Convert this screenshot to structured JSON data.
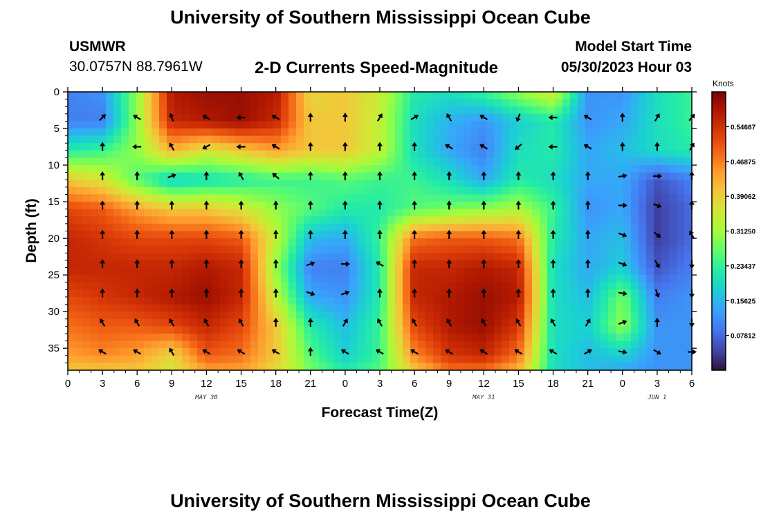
{
  "page": {
    "title": "University of Southern Mississippi Ocean Cube",
    "station": "USMWR",
    "coordinates": "30.0757N  88.7961W",
    "model_start_label": "Model Start Time",
    "model_start_value": "05/30/2023 Hour 03",
    "footer_title": "University of Southern Mississippi Ocean Cube"
  },
  "chart_data": {
    "type": "heatmap",
    "subtitle": "2-D Currents Speed-Magnitude",
    "xlabel": "Forecast Time(Z)",
    "ylabel": "Depth (ft)",
    "x_tick_labels": [
      "0",
      "3",
      "6",
      "9",
      "12",
      "15",
      "18",
      "21",
      "0",
      "3",
      "6",
      "9",
      "12",
      "15",
      "18",
      "21",
      "0",
      "3",
      "6"
    ],
    "x_range_hours": [
      0,
      54
    ],
    "date_labels": [
      {
        "text": "MAY 30",
        "hour": 12
      },
      {
        "text": "MAY 31",
        "hour": 36
      },
      {
        "text": "JUN 1",
        "hour": 51
      }
    ],
    "y_range_ft": [
      0,
      38
    ],
    "y_reversed": true,
    "y_tick_labels": [
      "0",
      "5",
      "10",
      "15",
      "20",
      "25",
      "30",
      "35"
    ],
    "y_tick_values": [
      0,
      5,
      10,
      15,
      20,
      25,
      30,
      35
    ],
    "colorbar": {
      "unit_label": "Knots",
      "min": 0,
      "max": 0.625,
      "tick_labels": [
        "0.54687",
        "0.46875",
        "0.39062",
        "0.31250",
        "0.23437",
        "0.15625",
        "0.07812"
      ],
      "tick_values": [
        0.54687,
        0.46875,
        0.39062,
        0.3125,
        0.23437,
        0.15625,
        0.07812
      ],
      "colormap": [
        "#30123b",
        "#4145ab",
        "#4675ed",
        "#39a2fc",
        "#1bcfd4",
        "#24eca6",
        "#61fc6c",
        "#a4fc3b",
        "#d1e834",
        "#f3c63a",
        "#fe9b2d",
        "#f36315",
        "#d93807",
        "#b11901",
        "#7a0403"
      ]
    },
    "speed_field_hours": [
      0,
      3,
      6,
      9,
      12,
      15,
      18,
      21,
      24,
      27,
      30,
      33,
      36,
      39,
      42,
      45,
      48,
      51,
      54
    ],
    "speed_field_depths_ft": [
      0,
      4,
      8,
      12,
      16,
      20,
      24,
      28,
      32,
      36,
      38
    ],
    "speed_field_knots": [
      [
        0.1,
        0.12,
        0.3,
        0.58,
        0.6,
        0.6,
        0.58,
        0.38,
        0.4,
        0.35,
        0.22,
        0.2,
        0.24,
        0.3,
        0.36,
        0.12,
        0.12,
        0.2,
        0.24
      ],
      [
        0.1,
        0.1,
        0.3,
        0.56,
        0.58,
        0.6,
        0.56,
        0.4,
        0.4,
        0.34,
        0.2,
        0.15,
        0.12,
        0.18,
        0.22,
        0.12,
        0.14,
        0.2,
        0.24
      ],
      [
        0.22,
        0.24,
        0.3,
        0.42,
        0.36,
        0.4,
        0.44,
        0.4,
        0.4,
        0.34,
        0.2,
        0.14,
        0.1,
        0.2,
        0.22,
        0.14,
        0.16,
        0.2,
        0.22
      ],
      [
        0.4,
        0.36,
        0.26,
        0.18,
        0.2,
        0.22,
        0.24,
        0.24,
        0.26,
        0.24,
        0.24,
        0.2,
        0.14,
        0.22,
        0.2,
        0.14,
        0.14,
        0.06,
        0.1
      ],
      [
        0.52,
        0.5,
        0.44,
        0.4,
        0.4,
        0.36,
        0.3,
        0.26,
        0.22,
        0.22,
        0.26,
        0.28,
        0.3,
        0.32,
        0.24,
        0.12,
        0.14,
        0.04,
        0.08
      ],
      [
        0.56,
        0.54,
        0.52,
        0.52,
        0.52,
        0.5,
        0.34,
        0.16,
        0.14,
        0.24,
        0.48,
        0.5,
        0.5,
        0.48,
        0.22,
        0.14,
        0.16,
        0.04,
        0.08
      ],
      [
        0.56,
        0.56,
        0.56,
        0.56,
        0.58,
        0.56,
        0.3,
        0.1,
        0.1,
        0.22,
        0.56,
        0.56,
        0.58,
        0.56,
        0.2,
        0.14,
        0.18,
        0.06,
        0.1
      ],
      [
        0.52,
        0.54,
        0.56,
        0.58,
        0.6,
        0.56,
        0.34,
        0.14,
        0.12,
        0.22,
        0.56,
        0.58,
        0.6,
        0.58,
        0.2,
        0.16,
        0.28,
        0.1,
        0.12
      ],
      [
        0.48,
        0.5,
        0.5,
        0.52,
        0.56,
        0.52,
        0.4,
        0.22,
        0.16,
        0.24,
        0.52,
        0.58,
        0.6,
        0.54,
        0.2,
        0.18,
        0.3,
        0.12,
        0.12
      ],
      [
        0.44,
        0.46,
        0.44,
        0.38,
        0.5,
        0.48,
        0.4,
        0.26,
        0.18,
        0.24,
        0.46,
        0.54,
        0.56,
        0.48,
        0.2,
        0.16,
        0.18,
        0.12,
        0.12
      ],
      [
        0.4,
        0.4,
        0.4,
        0.36,
        0.44,
        0.44,
        0.38,
        0.28,
        0.22,
        0.26,
        0.4,
        0.48,
        0.48,
        0.42,
        0.2,
        0.16,
        0.14,
        0.12,
        0.12
      ]
    ],
    "vector_hours": [
      3,
      6,
      9,
      12,
      15,
      18,
      21,
      24,
      27,
      30,
      33,
      36,
      39,
      42,
      45,
      48,
      51,
      54
    ],
    "vector_depths_ft": [
      3.5,
      7.5,
      11.5,
      15.5,
      19.5,
      23.5,
      27.5,
      31.5,
      35.5
    ],
    "vector_angles_deg": [
      [
        45,
        300,
        340,
        300,
        270,
        300,
        0,
        0,
        30,
        60,
        330,
        300,
        200,
        270,
        300,
        0,
        30,
        40
      ],
      [
        0,
        270,
        330,
        240,
        270,
        300,
        0,
        0,
        0,
        0,
        300,
        300,
        230,
        270,
        300,
        0,
        0,
        30
      ],
      [
        0,
        0,
        70,
        0,
        330,
        310,
        0,
        0,
        0,
        0,
        0,
        0,
        0,
        0,
        0,
        80,
        90,
        0
      ],
      [
        0,
        0,
        0,
        0,
        0,
        0,
        0,
        0,
        0,
        0,
        0,
        0,
        0,
        0,
        0,
        90,
        110,
        0
      ],
      [
        0,
        0,
        0,
        0,
        0,
        0,
        0,
        0,
        0,
        0,
        0,
        0,
        0,
        0,
        0,
        110,
        130,
        330
      ],
      [
        0,
        0,
        0,
        0,
        0,
        0,
        70,
        90,
        300,
        0,
        0,
        0,
        0,
        0,
        0,
        110,
        150,
        180
      ],
      [
        0,
        0,
        0,
        0,
        0,
        0,
        110,
        70,
        0,
        0,
        0,
        0,
        0,
        0,
        0,
        100,
        160,
        180
      ],
      [
        330,
        330,
        330,
        330,
        330,
        0,
        0,
        30,
        330,
        330,
        330,
        330,
        330,
        330,
        30,
        70,
        0,
        180
      ],
      [
        300,
        300,
        330,
        300,
        300,
        300,
        0,
        300,
        300,
        300,
        300,
        300,
        300,
        300,
        60,
        100,
        120,
        90
      ]
    ]
  }
}
